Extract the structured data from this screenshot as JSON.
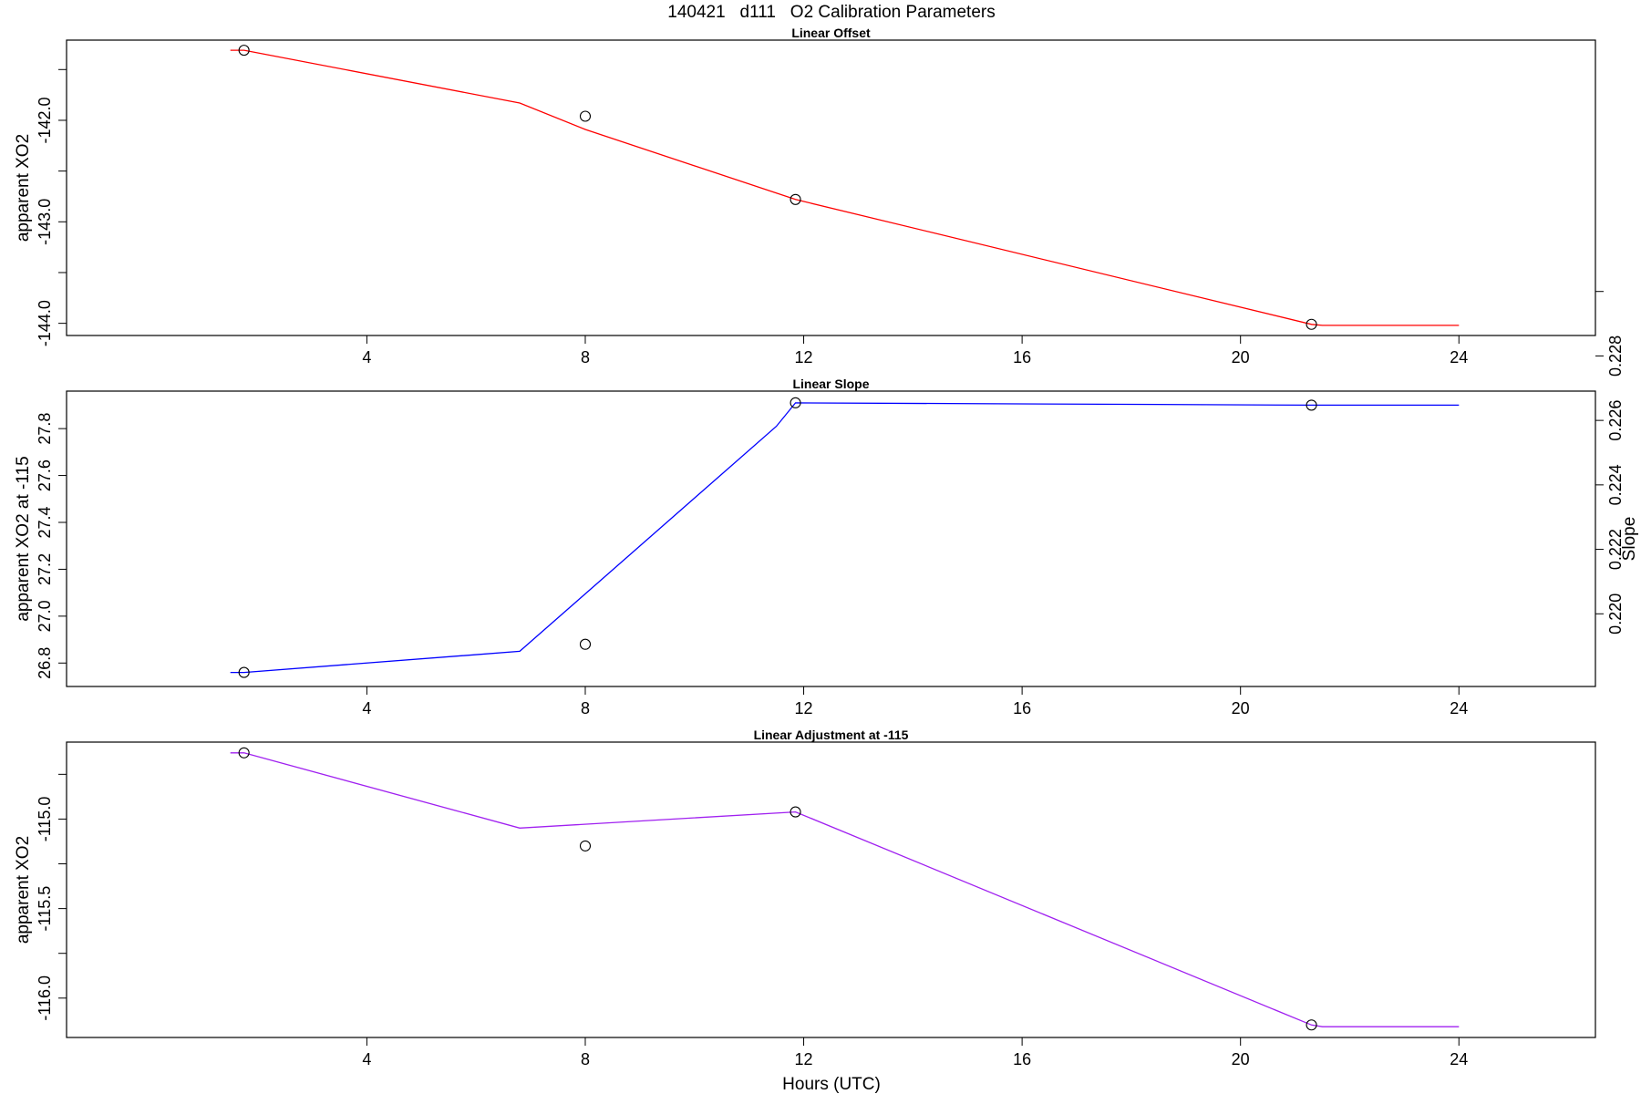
{
  "figure": {
    "title": "140421   d111   O2 Calibration Parameters",
    "xlabel": "Hours (UTC)"
  },
  "chart_data": [
    {
      "type": "line",
      "title": "Linear Offset",
      "xlabel": "",
      "ylabel": "apparent XO2",
      "xlim": [
        -1.5,
        26.5
      ],
      "ylim": [
        -144.12,
        -141.21
      ],
      "xticks": [
        4,
        8,
        12,
        16,
        20,
        24
      ],
      "yticks": [
        -144.0,
        -143.5,
        -143.0,
        -142.5,
        -142.0,
        -141.5
      ],
      "ytick_labels": [
        "-144.0",
        "",
        "-143.0",
        "",
        "-142.0",
        ""
      ],
      "series": [
        {
          "color": "#ff0000",
          "line_x": [
            1.5,
            1.75,
            6.8,
            8.0,
            11.85,
            21.3,
            21.5,
            24.0
          ],
          "line_y": [
            -141.31,
            -141.31,
            -141.83,
            -142.09,
            -142.78,
            -144.01,
            -144.02,
            -144.02
          ],
          "point_x": [
            1.75,
            8.0,
            11.85,
            21.3
          ],
          "point_y": [
            -141.31,
            -141.96,
            -142.78,
            -144.01
          ]
        }
      ]
    },
    {
      "type": "line",
      "title": "Linear Slope",
      "xlabel": "",
      "ylabel": "apparent XO2 at -115",
      "y2label": "Slope",
      "xlim": [
        -1.5,
        26.5
      ],
      "ylim": [
        26.7,
        27.96
      ],
      "xticks": [
        4,
        8,
        12,
        16,
        20,
        24
      ],
      "yticks": [
        26.8,
        27.0,
        27.2,
        27.4,
        27.6,
        27.8
      ],
      "ytick_labels": [
        "26.8",
        "27.0",
        "27.2",
        "27.4",
        "27.6",
        "27.8"
      ],
      "y2ticks": [
        27.01,
        27.285,
        27.56,
        27.835,
        28.11,
        28.385
      ],
      "y2tick_labels": [
        "0.220",
        "0.222",
        "0.224",
        "0.226",
        "0.228",
        ""
      ],
      "series": [
        {
          "color": "#0000ff",
          "line_x": [
            1.5,
            1.75,
            6.8,
            11.5,
            11.85,
            21.3,
            24.0
          ],
          "line_y": [
            26.76,
            26.76,
            26.85,
            27.81,
            27.91,
            27.9,
            27.9
          ],
          "point_x": [
            1.75,
            8.0,
            11.85,
            21.3
          ],
          "point_y": [
            26.76,
            26.88,
            27.91,
            27.9
          ]
        }
      ]
    },
    {
      "type": "line",
      "title": "Linear Adjustment at -115",
      "xlabel": "",
      "ylabel": "apparent XO2",
      "xlim": [
        -1.5,
        26.5
      ],
      "ylim": [
        -116.22,
        -114.57
      ],
      "xticks": [
        4,
        8,
        12,
        16,
        20,
        24
      ],
      "yticks": [
        -116.0,
        -115.75,
        -115.5,
        -115.25,
        -115.0,
        -114.75
      ],
      "ytick_labels": [
        "-116.0",
        "",
        "-115.5",
        "",
        "-115.0",
        ""
      ],
      "series": [
        {
          "color": "#a020f0",
          "line_x": [
            1.5,
            1.75,
            6.8,
            11.85,
            21.3,
            21.5,
            24.0
          ],
          "line_y": [
            -114.63,
            -114.63,
            -115.05,
            -114.96,
            -116.15,
            -116.16,
            -116.16
          ],
          "point_x": [
            1.75,
            8.0,
            11.85,
            21.3
          ],
          "point_y": [
            -114.63,
            -115.15,
            -114.96,
            -116.15
          ]
        }
      ]
    }
  ]
}
